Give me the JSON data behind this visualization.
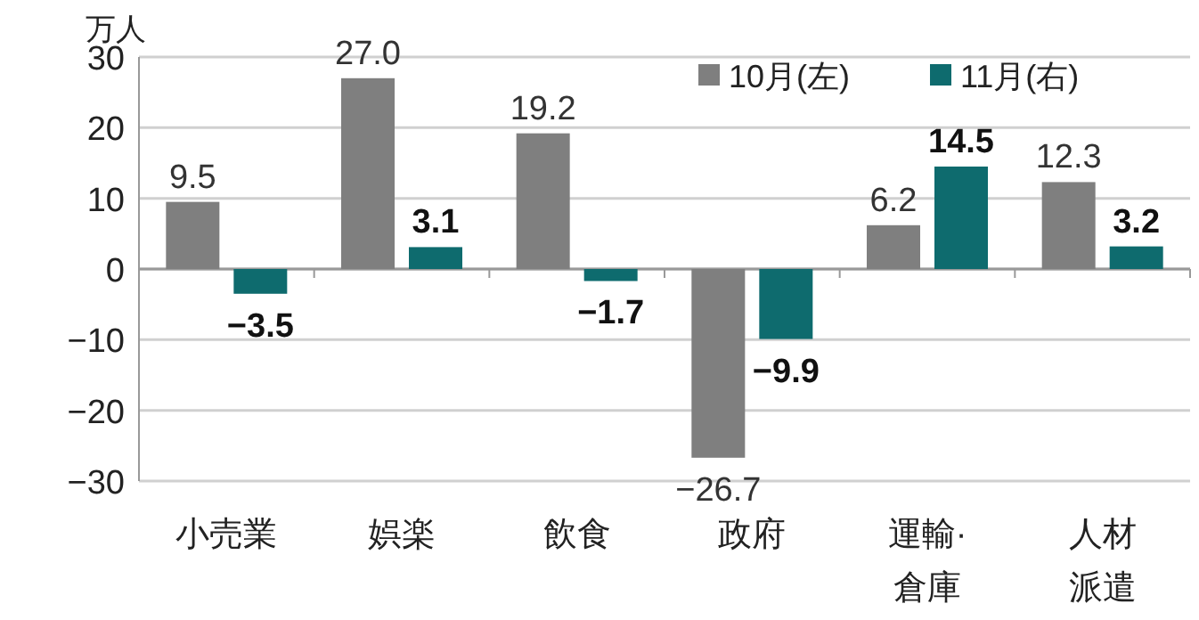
{
  "chart_data": {
    "type": "bar",
    "ylabel": "万人",
    "categories": [
      "小売業",
      "娯楽",
      "飲食",
      "政府",
      "運輸·倉庫",
      "人材派遣"
    ],
    "series": [
      {
        "name": "10月(左)",
        "color": "#7f7f7f",
        "values": [
          9.5,
          27.0,
          19.2,
          -26.7,
          6.2,
          12.3
        ],
        "value_labels": [
          "9.5",
          "27.0",
          "19.2",
          "−26.7",
          "6.2",
          "12.3"
        ]
      },
      {
        "name": "11月(右)",
        "color": "#0e6b6e",
        "values": [
          -3.5,
          3.1,
          -1.7,
          -9.9,
          14.5,
          3.2
        ],
        "value_labels": [
          "−3.5",
          "3.1",
          "−1.7",
          "−9.9",
          "14.5",
          "3.2"
        ]
      }
    ],
    "ylim": [
      -30,
      30
    ],
    "yticks": [
      -30,
      -20,
      -10,
      0,
      10,
      20,
      30
    ],
    "grid": "y",
    "legend": "top right"
  }
}
